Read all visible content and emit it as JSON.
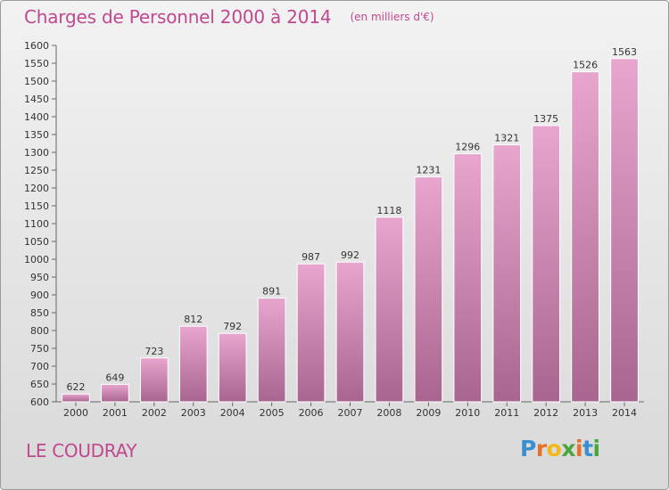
{
  "chart_data": {
    "type": "bar",
    "title": "Charges de Personnel 2000 à 2014",
    "unit": "(en milliers d'€)",
    "categories": [
      "2000",
      "2001",
      "2002",
      "2003",
      "2004",
      "2005",
      "2006",
      "2007",
      "2008",
      "2009",
      "2010",
      "2011",
      "2012",
      "2013",
      "2014"
    ],
    "values": [
      622,
      649,
      723,
      812,
      792,
      891,
      987,
      992,
      1118,
      1231,
      1296,
      1321,
      1375,
      1526,
      1563
    ],
    "ylim": [
      600,
      1600
    ],
    "ytick_step": 50,
    "xlabel": "",
    "ylabel": "",
    "grid": false,
    "legend": "none"
  },
  "place": "LE COUDRAY",
  "logo": {
    "letters": [
      "P",
      "r",
      "o",
      "x",
      "i",
      "t",
      "i"
    ],
    "colors": [
      "#3a8fd0",
      "#e8702a",
      "#f2b818",
      "#4aa63d",
      "#e8702a",
      "#3a8fd0",
      "#4aa63d"
    ]
  },
  "colors": {
    "accent": "#c0488f",
    "bar_top": "#e8a6cf",
    "bar_bottom": "#a8658f"
  }
}
